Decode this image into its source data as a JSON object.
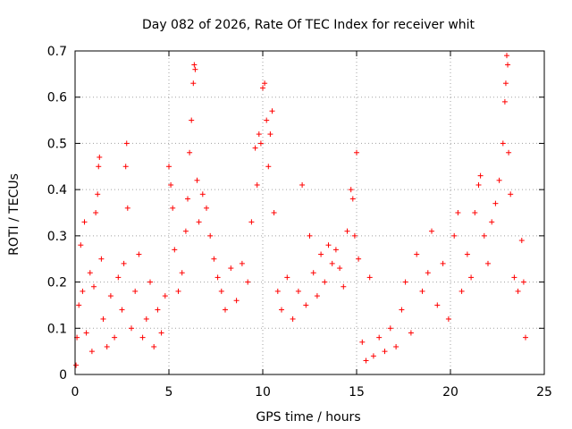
{
  "chart_data": {
    "type": "scatter",
    "title": "Day 082 of 2026, Rate Of TEC Index for receiver whit",
    "xlabel": "GPS time / hours",
    "ylabel": "ROTI / TECUs",
    "xlim": [
      0,
      25
    ],
    "ylim": [
      0,
      0.7
    ],
    "x_ticks": [
      0,
      5,
      10,
      15,
      20,
      25
    ],
    "y_ticks": [
      0,
      0.1,
      0.2,
      0.3,
      0.4,
      0.5,
      0.6,
      0.7
    ],
    "x_tick_labels": [
      "0",
      "5",
      "10",
      "15",
      "20",
      "25"
    ],
    "y_tick_labels": [
      "0",
      "0.1",
      "0.2",
      "0.3",
      "0.4",
      "0.5",
      "0.6",
      "0.7"
    ],
    "grid": true,
    "grid_style": "dotted",
    "marker": "+",
    "series": [
      {
        "name": "ROTI",
        "color": "#ff0000",
        "points": [
          [
            0.05,
            0.02
          ],
          [
            0.1,
            0.08
          ],
          [
            0.2,
            0.15
          ],
          [
            0.3,
            0.28
          ],
          [
            0.4,
            0.18
          ],
          [
            0.5,
            0.33
          ],
          [
            0.6,
            0.09
          ],
          [
            0.8,
            0.22
          ],
          [
            0.9,
            0.05
          ],
          [
            1.0,
            0.19
          ],
          [
            1.1,
            0.35
          ],
          [
            1.2,
            0.39
          ],
          [
            1.25,
            0.45
          ],
          [
            1.3,
            0.47
          ],
          [
            1.4,
            0.25
          ],
          [
            1.5,
            0.12
          ],
          [
            1.7,
            0.06
          ],
          [
            1.9,
            0.17
          ],
          [
            2.1,
            0.08
          ],
          [
            2.3,
            0.21
          ],
          [
            2.5,
            0.14
          ],
          [
            2.6,
            0.24
          ],
          [
            2.7,
            0.45
          ],
          [
            2.75,
            0.5
          ],
          [
            2.8,
            0.36
          ],
          [
            3.0,
            0.1
          ],
          [
            3.2,
            0.18
          ],
          [
            3.4,
            0.26
          ],
          [
            3.6,
            0.08
          ],
          [
            3.8,
            0.12
          ],
          [
            4.0,
            0.2
          ],
          [
            4.2,
            0.06
          ],
          [
            4.4,
            0.14
          ],
          [
            4.6,
            0.09
          ],
          [
            4.8,
            0.17
          ],
          [
            5.0,
            0.45
          ],
          [
            5.1,
            0.41
          ],
          [
            5.2,
            0.36
          ],
          [
            5.3,
            0.27
          ],
          [
            5.5,
            0.18
          ],
          [
            5.7,
            0.22
          ],
          [
            5.9,
            0.31
          ],
          [
            6.0,
            0.38
          ],
          [
            6.1,
            0.48
          ],
          [
            6.2,
            0.55
          ],
          [
            6.3,
            0.63
          ],
          [
            6.35,
            0.67
          ],
          [
            6.4,
            0.66
          ],
          [
            6.5,
            0.42
          ],
          [
            6.6,
            0.33
          ],
          [
            6.8,
            0.39
          ],
          [
            7.0,
            0.36
          ],
          [
            7.2,
            0.3
          ],
          [
            7.4,
            0.25
          ],
          [
            7.6,
            0.21
          ],
          [
            7.8,
            0.18
          ],
          [
            8.0,
            0.14
          ],
          [
            8.3,
            0.23
          ],
          [
            8.6,
            0.16
          ],
          [
            8.9,
            0.24
          ],
          [
            9.2,
            0.2
          ],
          [
            9.4,
            0.33
          ],
          [
            9.6,
            0.49
          ],
          [
            9.7,
            0.41
          ],
          [
            9.8,
            0.52
          ],
          [
            9.9,
            0.5
          ],
          [
            10.0,
            0.62
          ],
          [
            10.1,
            0.63
          ],
          [
            10.2,
            0.55
          ],
          [
            10.3,
            0.45
          ],
          [
            10.4,
            0.52
          ],
          [
            10.5,
            0.57
          ],
          [
            10.6,
            0.35
          ],
          [
            10.8,
            0.18
          ],
          [
            11.0,
            0.14
          ],
          [
            11.3,
            0.21
          ],
          [
            11.6,
            0.12
          ],
          [
            11.9,
            0.18
          ],
          [
            12.1,
            0.41
          ],
          [
            12.3,
            0.15
          ],
          [
            12.5,
            0.3
          ],
          [
            12.7,
            0.22
          ],
          [
            12.9,
            0.17
          ],
          [
            13.1,
            0.26
          ],
          [
            13.3,
            0.2
          ],
          [
            13.5,
            0.28
          ],
          [
            13.7,
            0.24
          ],
          [
            13.9,
            0.27
          ],
          [
            14.1,
            0.23
          ],
          [
            14.3,
            0.19
          ],
          [
            14.5,
            0.31
          ],
          [
            14.7,
            0.4
          ],
          [
            14.8,
            0.38
          ],
          [
            14.9,
            0.3
          ],
          [
            15.0,
            0.48
          ],
          [
            15.1,
            0.25
          ],
          [
            15.3,
            0.07
          ],
          [
            15.5,
            0.03
          ],
          [
            15.7,
            0.21
          ],
          [
            15.9,
            0.04
          ],
          [
            16.2,
            0.08
          ],
          [
            16.5,
            0.05
          ],
          [
            16.8,
            0.1
          ],
          [
            17.1,
            0.06
          ],
          [
            17.4,
            0.14
          ],
          [
            17.6,
            0.2
          ],
          [
            17.9,
            0.09
          ],
          [
            18.2,
            0.26
          ],
          [
            18.5,
            0.18
          ],
          [
            18.8,
            0.22
          ],
          [
            19.0,
            0.31
          ],
          [
            19.3,
            0.15
          ],
          [
            19.6,
            0.24
          ],
          [
            19.9,
            0.12
          ],
          [
            20.2,
            0.3
          ],
          [
            20.4,
            0.35
          ],
          [
            20.6,
            0.18
          ],
          [
            20.9,
            0.26
          ],
          [
            21.1,
            0.21
          ],
          [
            21.3,
            0.35
          ],
          [
            21.5,
            0.41
          ],
          [
            21.6,
            0.43
          ],
          [
            21.8,
            0.3
          ],
          [
            22.0,
            0.24
          ],
          [
            22.2,
            0.33
          ],
          [
            22.4,
            0.37
          ],
          [
            22.6,
            0.42
          ],
          [
            22.8,
            0.5
          ],
          [
            22.9,
            0.59
          ],
          [
            22.95,
            0.63
          ],
          [
            23.0,
            0.69
          ],
          [
            23.05,
            0.67
          ],
          [
            23.1,
            0.48
          ],
          [
            23.2,
            0.39
          ],
          [
            23.4,
            0.21
          ],
          [
            23.6,
            0.18
          ],
          [
            23.8,
            0.29
          ],
          [
            23.9,
            0.2
          ],
          [
            24.0,
            0.08
          ]
        ]
      }
    ]
  }
}
